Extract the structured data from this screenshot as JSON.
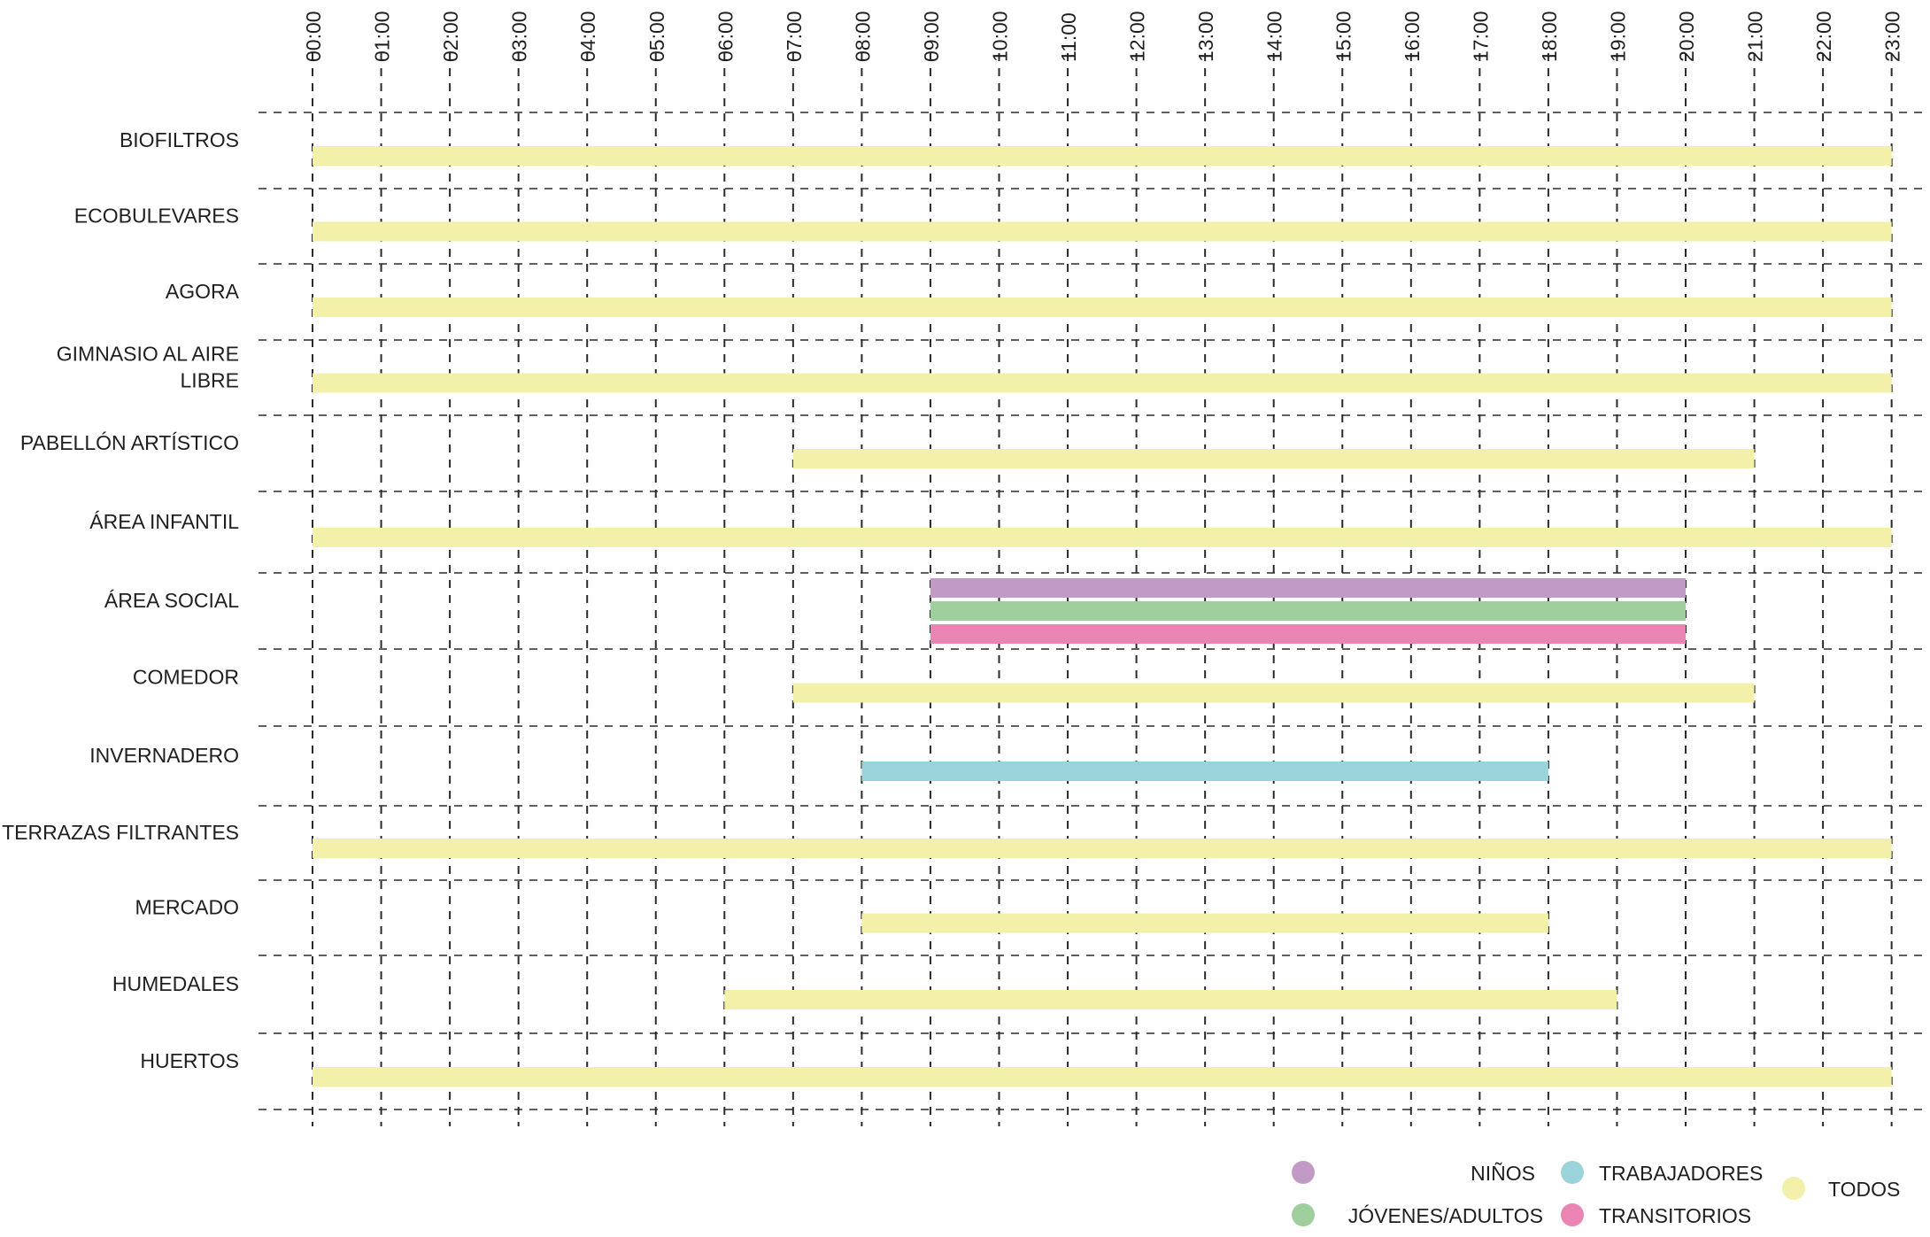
{
  "chart_data": {
    "type": "gantt",
    "x_unit": "hour",
    "x_range": [
      "00:00",
      "23:00"
    ],
    "x_ticks": [
      "00:00",
      "01:00",
      "02:00",
      "03:00",
      "04:00",
      "05:00",
      "06:00",
      "07:00",
      "08:00",
      "09:00",
      "10:00",
      "11:00",
      "12:00",
      "13:00",
      "14:00",
      "15:00",
      "16:00",
      "17:00",
      "18:00",
      "19:00",
      "20:00",
      "21:00",
      "22:00",
      "23:00"
    ],
    "grid": true,
    "categories": [
      {
        "label_lines": [
          "BIOFILTROS"
        ],
        "bars": [
          {
            "group": "TODOS",
            "start": 0,
            "end": 23
          }
        ]
      },
      {
        "label_lines": [
          "ECOBULEVARES"
        ],
        "bars": [
          {
            "group": "TODOS",
            "start": 0,
            "end": 23
          }
        ]
      },
      {
        "label_lines": [
          "AGORA"
        ],
        "bars": [
          {
            "group": "TODOS",
            "start": 0,
            "end": 23
          }
        ]
      },
      {
        "label_lines": [
          "GIMNASIO AL AIRE",
          "LIBRE"
        ],
        "bars": [
          {
            "group": "TODOS",
            "start": 0,
            "end": 23
          }
        ]
      },
      {
        "label_lines": [
          "PABELLÓN ARTÍSTICO"
        ],
        "bars": [
          {
            "group": "TODOS",
            "start": 7,
            "end": 21
          }
        ]
      },
      {
        "label_lines": [
          "ÁREA INFANTIL"
        ],
        "bars": [
          {
            "group": "TODOS",
            "start": 0,
            "end": 23
          }
        ]
      },
      {
        "label_lines": [
          "ÁREA SOCIAL"
        ],
        "bars": [
          {
            "group": "NIÑOS",
            "start": 9,
            "end": 20
          },
          {
            "group": "JÓVENES/ADULTOS",
            "start": 9,
            "end": 20
          },
          {
            "group": "TRANSITORIOS",
            "start": 9,
            "end": 20
          }
        ]
      },
      {
        "label_lines": [
          "COMEDOR"
        ],
        "bars": [
          {
            "group": "TODOS",
            "start": 7,
            "end": 21
          }
        ]
      },
      {
        "label_lines": [
          "INVERNADERO"
        ],
        "bars": [
          {
            "group": "TRABAJADORES",
            "start": 8,
            "end": 18
          }
        ]
      },
      {
        "label_lines": [
          "TERRAZAS FILTRANTES"
        ],
        "bars": [
          {
            "group": "TODOS",
            "start": 0,
            "end": 23
          }
        ]
      },
      {
        "label_lines": [
          "MERCADO"
        ],
        "bars": [
          {
            "group": "TODOS",
            "start": 8,
            "end": 18
          }
        ]
      },
      {
        "label_lines": [
          "HUMEDALES"
        ],
        "bars": [
          {
            "group": "TODOS",
            "start": 6,
            "end": 19
          }
        ]
      },
      {
        "label_lines": [
          "HUERTOS"
        ],
        "bars": [
          {
            "group": "TODOS",
            "start": 0,
            "end": 23
          }
        ]
      }
    ],
    "legend_position": "bottom-right",
    "legend": [
      {
        "name": "NIÑOS",
        "color": "#c29ac6"
      },
      {
        "name": "JÓVENES/ADULTOS",
        "color": "#9fcf9d"
      },
      {
        "name": "TRABAJADORES",
        "color": "#9bd3da"
      },
      {
        "name": "TRANSITORIOS",
        "color": "#e984b3"
      },
      {
        "name": "TODOS",
        "color": "#f2f0a9"
      }
    ]
  }
}
